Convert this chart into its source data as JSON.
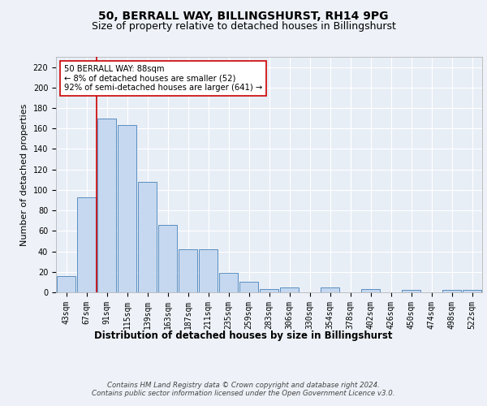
{
  "title": "50, BERRALL WAY, BILLINGSHURST, RH14 9PG",
  "subtitle": "Size of property relative to detached houses in Billingshurst",
  "xlabel": "Distribution of detached houses by size in Billingshurst",
  "ylabel": "Number of detached properties",
  "bar_labels": [
    "43sqm",
    "67sqm",
    "91sqm",
    "115sqm",
    "139sqm",
    "163sqm",
    "187sqm",
    "211sqm",
    "235sqm",
    "259sqm",
    "283sqm",
    "306sqm",
    "330sqm",
    "354sqm",
    "378sqm",
    "402sqm",
    "426sqm",
    "450sqm",
    "474sqm",
    "498sqm",
    "522sqm"
  ],
  "bar_values": [
    16,
    93,
    170,
    163,
    108,
    66,
    42,
    42,
    19,
    10,
    3,
    5,
    0,
    5,
    0,
    3,
    0,
    2,
    0,
    2,
    2
  ],
  "bar_color": "#c5d8f0",
  "bar_edgecolor": "#5a8ec0",
  "ylim": [
    0,
    230
  ],
  "yticks": [
    0,
    20,
    40,
    60,
    80,
    100,
    120,
    140,
    160,
    180,
    200,
    220
  ],
  "vline_x_idx": 2,
  "vline_color": "#cc0000",
  "annotation_text": "50 BERRALL WAY: 88sqm\n← 8% of detached houses are smaller (52)\n92% of semi-detached houses are larger (641) →",
  "annotation_box_color": "#ffffff",
  "annotation_box_edgecolor": "#cc0000",
  "footer_text": "Contains HM Land Registry data © Crown copyright and database right 2024.\nContains public sector information licensed under the Open Government Licence v3.0.",
  "background_color": "#eef2f8",
  "plot_background": "#e8eef6",
  "grid_color": "#ffffff",
  "title_fontsize": 10,
  "subtitle_fontsize": 9,
  "tick_fontsize": 7,
  "ylabel_fontsize": 8,
  "xlabel_fontsize": 8.5
}
